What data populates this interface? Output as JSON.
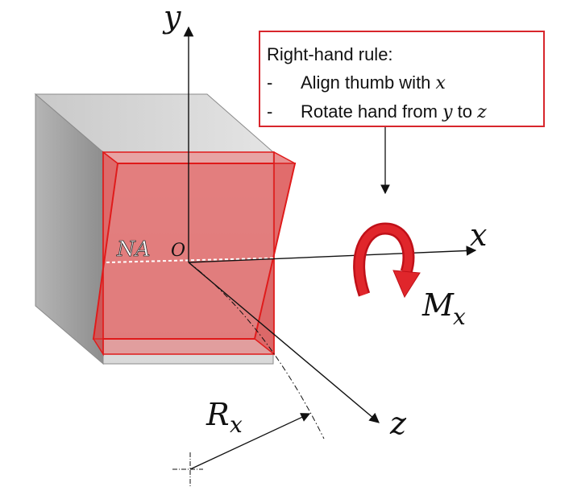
{
  "axes": {
    "y_label": "y",
    "x_label": "x",
    "z_label": "z",
    "origin_label": "O",
    "neutral_axis_label": "NA"
  },
  "moment": {
    "symbol": "M",
    "subscript": "x",
    "arrow_color": "#d0141b"
  },
  "radius": {
    "symbol": "R",
    "subscript": "x"
  },
  "rule_box": {
    "title": "Right-hand rule:",
    "line1": {
      "bullet": "-",
      "text": "Align thumb with ",
      "var": "x"
    },
    "line2": {
      "bullet": "-",
      "text": "Rotate hand from ",
      "var1": "y",
      "mid": " to ",
      "var2": "z"
    },
    "border_color": "#d8262c"
  },
  "colors": {
    "beam_grey": "#9a9a9a",
    "section_red": "#e06060",
    "section_edge": "#e01a1a"
  }
}
